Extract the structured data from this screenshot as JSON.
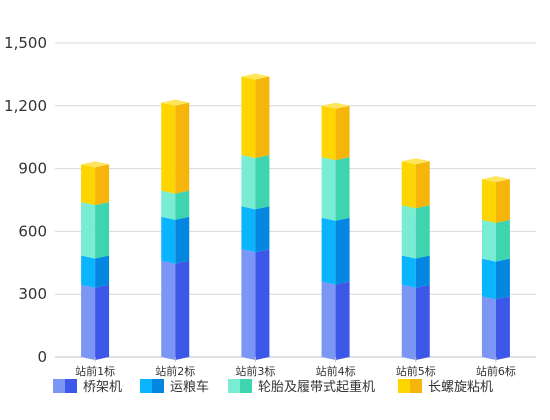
{
  "chart_data": {
    "type": "bar",
    "stacked": true,
    "style": "3d",
    "categories": [
      "站前1标",
      "站前2标",
      "站前3标",
      "站前4标",
      "站前5标",
      "站前6标"
    ],
    "series": [
      {
        "name": "桥架机",
        "values": [
          345,
          460,
          515,
          360,
          345,
          290
        ]
      },
      {
        "name": "运粮车",
        "values": [
          140,
          210,
          205,
          305,
          140,
          180
        ]
      },
      {
        "name": "轮胎及履带式起重机",
        "values": [
          255,
          125,
          245,
          290,
          240,
          185
        ]
      },
      {
        "name": "长螺旋粘机",
        "values": [
          180,
          420,
          375,
          245,
          210,
          195
        ]
      }
    ],
    "yticks": [
      "0",
      "300",
      "600",
      "900",
      "1,200",
      "1,500"
    ],
    "ylim": [
      0,
      1500
    ],
    "grid": true,
    "legend_position": "bottom",
    "colors": {
      "front": [
        "#7b96f5",
        "#0ab4ff",
        "#79ecd4",
        "#ffd500"
      ],
      "side": [
        "#3d58e8",
        "#0487e0",
        "#3fd4b0",
        "#f5b50a"
      ],
      "top": [
        "#9fb2f8",
        "#5ecbff",
        "#a9f3e3",
        "#ffe55c"
      ],
      "grid": "#d9d9d9",
      "axis": "#bfbfbf"
    }
  }
}
